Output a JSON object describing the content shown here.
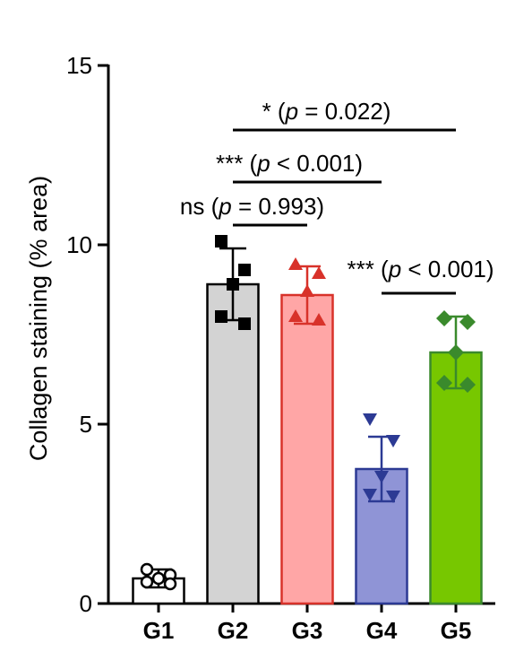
{
  "chart_data": {
    "type": "bar",
    "title": "",
    "xlabel": "",
    "ylabel": "Collagen staining (% area)",
    "ylim": [
      0,
      15
    ],
    "yticks": [
      0,
      5,
      10,
      15
    ],
    "categories": [
      "G1",
      "G2",
      "G3",
      "G4",
      "G5"
    ],
    "bars": [
      {
        "category": "G1",
        "mean": 0.7,
        "sd": 0.25,
        "points": [
          0.95,
          0.8,
          0.7,
          0.6,
          0.55
        ],
        "fill": "#ffffff",
        "stroke": "#000000",
        "marker": "circle-open",
        "marker_color": "#000000"
      },
      {
        "category": "G2",
        "mean": 8.9,
        "sd": 1.0,
        "points": [
          10.1,
          9.3,
          8.9,
          8.0,
          7.8
        ],
        "fill": "#d3d3d3",
        "stroke": "#000000",
        "marker": "square",
        "marker_color": "#000000"
      },
      {
        "category": "G3",
        "mean": 8.6,
        "sd": 0.8,
        "points": [
          9.45,
          9.2,
          8.7,
          8.0,
          7.9
        ],
        "fill": "#ffa6a6",
        "stroke": "#d8322a",
        "marker": "triangle-up",
        "marker_color": "#d8322a"
      },
      {
        "category": "G4",
        "mean": 3.75,
        "sd": 0.9,
        "points": [
          5.15,
          4.55,
          3.55,
          3.05,
          3.0
        ],
        "fill": "#8f94d6",
        "stroke": "#2c3a94",
        "marker": "triangle-down",
        "marker_color": "#2c3a94"
      },
      {
        "category": "G5",
        "mean": 7.0,
        "sd": 1.0,
        "points": [
          7.95,
          7.85,
          7.0,
          6.15,
          6.1
        ],
        "fill": "#77c700",
        "stroke": "#3a8a2c",
        "marker": "diamond",
        "marker_color": "#3a8a2c"
      }
    ],
    "annotations": [
      {
        "from": "G2",
        "to": "G5",
        "y": 13.2,
        "stars": "*",
        "p": "p",
        "rest": " = 0.022)"
      },
      {
        "from": "G2",
        "to": "G4",
        "y": 11.75,
        "stars": "***",
        "p": "p",
        "rest": " < 0.001)"
      },
      {
        "from": "G2",
        "to": "G3",
        "y": 10.55,
        "stars": "ns",
        "p": "p",
        "rest": " = 0.993)"
      },
      {
        "from": "G4",
        "to": "G5",
        "y": 8.65,
        "stars": "***",
        "p": "p",
        "rest": " < 0.001)"
      }
    ]
  }
}
